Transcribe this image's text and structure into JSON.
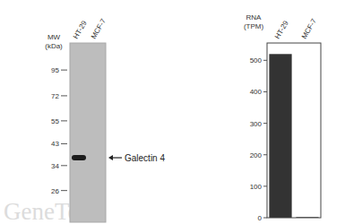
{
  "chart_data": [
    {
      "type": "western_blot",
      "y_label": "MW (kDa)",
      "categories": [
        "HT-29",
        "MCF-7"
      ],
      "values": [
        37,
        null
      ],
      "ylim": [
        18.5,
        127
      ],
      "yticks": [
        95,
        72,
        55,
        43,
        34,
        26
      ],
      "log": "y",
      "color": "#1c1c1c",
      "annotations": [
        "Galectin 4"
      ]
    },
    {
      "type": "bar",
      "y_label": "RNA (TPM)",
      "categories": [
        "HT-29",
        "MCF-7"
      ],
      "values": [
        520,
        2
      ],
      "ylim": [
        0,
        555
      ],
      "yticks": [
        0,
        100,
        200,
        300,
        400,
        500
      ],
      "color": "#333333"
    }
  ],
  "watermark": "GeneTex"
}
